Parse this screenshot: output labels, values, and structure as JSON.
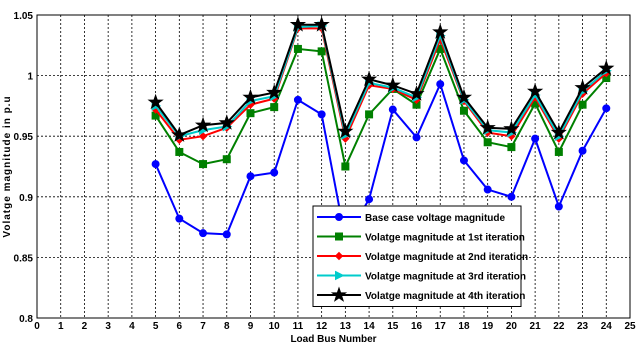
{
  "chart_data": {
    "type": "line",
    "title": "",
    "xlabel": "Load Bus Number",
    "ylabel": "Volatge magnitude in p.u",
    "xlim": [
      0,
      25
    ],
    "ylim": [
      0.8,
      1.05
    ],
    "xticks": [
      "0",
      "1",
      "2",
      "3",
      "4",
      "5",
      "6",
      "7",
      "8",
      "9",
      "10",
      "11",
      "12",
      "13",
      "14",
      "15",
      "16",
      "17",
      "18",
      "19",
      "20",
      "21",
      "22",
      "23",
      "24",
      "25"
    ],
    "yticks": [
      "0.8",
      "0.85",
      "0.9",
      "0.95",
      "1",
      "1.05"
    ],
    "grid": true,
    "legend_position": "bottom-right",
    "x": [
      5,
      6,
      7,
      8,
      9,
      10,
      11,
      12,
      13,
      14,
      15,
      16,
      17,
      18,
      19,
      20,
      21,
      22,
      23,
      24
    ],
    "series": [
      {
        "name": "Base case voltage magnitude",
        "color": "#0000ff",
        "marker": "circle",
        "values": [
          0.927,
          0.882,
          0.87,
          0.869,
          0.917,
          0.92,
          0.98,
          0.968,
          0.865,
          0.898,
          0.972,
          0.949,
          0.993,
          0.93,
          0.906,
          0.9,
          0.948,
          0.892,
          0.938,
          0.973
        ]
      },
      {
        "name": "Volatge magnitude at 1st iteration",
        "color": "#008000",
        "marker": "square",
        "values": [
          0.967,
          0.937,
          0.927,
          0.931,
          0.969,
          0.974,
          1.022,
          1.02,
          0.925,
          0.968,
          0.989,
          0.976,
          1.022,
          0.971,
          0.945,
          0.941,
          0.977,
          0.937,
          0.976,
          0.998
        ]
      },
      {
        "name": "Volatge magnitude at 2nd iteration",
        "color": "#ff0000",
        "marker": "diamond",
        "values": [
          0.972,
          0.947,
          0.95,
          0.957,
          0.976,
          0.981,
          1.039,
          1.039,
          0.948,
          0.992,
          0.989,
          0.98,
          1.03,
          0.979,
          0.953,
          0.95,
          0.982,
          0.948,
          0.985,
          1.002
        ]
      },
      {
        "name": "Volatge magnitude at 3rd iteration",
        "color": "#00cccc",
        "marker": "triangle-right",
        "values": [
          0.975,
          0.95,
          0.955,
          0.958,
          0.979,
          0.983,
          1.04,
          1.041,
          0.951,
          0.994,
          0.99,
          0.982,
          1.033,
          0.98,
          0.955,
          0.953,
          0.984,
          0.95,
          0.987,
          1.004
        ]
      },
      {
        "name": "Volatge magnitude at 4th iteration",
        "color": "#000000",
        "marker": "star",
        "values": [
          0.978,
          0.951,
          0.959,
          0.961,
          0.982,
          0.986,
          1.042,
          1.042,
          0.954,
          0.997,
          0.992,
          0.985,
          1.036,
          0.982,
          0.957,
          0.956,
          0.987,
          0.953,
          0.99,
          1.006
        ]
      }
    ]
  }
}
